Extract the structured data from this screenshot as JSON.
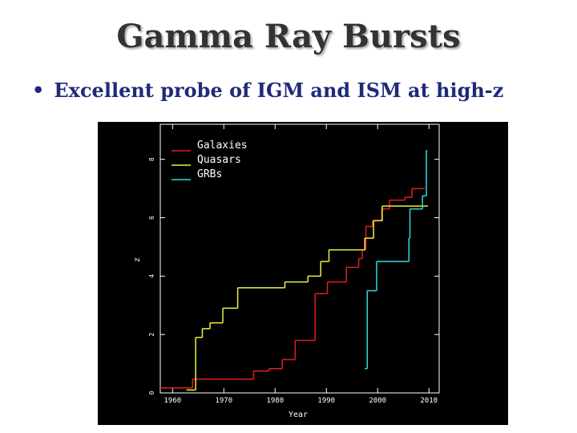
{
  "slide": {
    "title": "Gamma Ray Bursts",
    "bullet": "Excellent probe of IGM and ISM at high-z"
  },
  "chart_data": {
    "type": "step",
    "x_label": "Year",
    "y_label": "z",
    "xlim": [
      1957.6,
      2012
    ],
    "ylim": [
      0,
      9.2
    ],
    "xticks": [
      1960,
      1970,
      1980,
      1990,
      2000,
      2010
    ],
    "yticks": [
      0,
      2,
      4,
      6,
      8
    ],
    "legend": "upper left",
    "series": [
      {
        "name": "Galaxies",
        "color": "#e02020",
        "bins": [
          1957.6,
          1963.9,
          1975.8,
          1978.8,
          1981.4,
          1983.9,
          1987.8,
          1990.2,
          1993.9,
          1996.3,
          1997.0,
          1997.7,
          1999.0,
          2000.8,
          2002.3,
          2005.3,
          2006.7,
          2009.2
        ],
        "values": [
          0.17,
          0.47,
          0.75,
          0.83,
          1.14,
          1.8,
          3.4,
          3.8,
          4.3,
          4.6,
          4.9,
          5.7,
          5.9,
          6.3,
          6.6,
          6.7,
          7.0
        ]
      },
      {
        "name": "Quasars",
        "color": "#f0f040",
        "bins": [
          1962.7,
          1964.5,
          1965.8,
          1967.3,
          1969.8,
          1972.7,
          1981.9,
          1986.4,
          1988.9,
          1990.5,
          1997.5,
          1999.2,
          2000.9,
          2009.8
        ],
        "values": [
          0.1,
          1.9,
          2.2,
          2.4,
          2.9,
          3.6,
          3.8,
          4.0,
          4.5,
          4.9,
          5.3,
          5.9,
          6.4
        ]
      },
      {
        "name": "GRBs",
        "color": "#30d8e0",
        "bins": [
          1997.5,
          1997.97,
          1999.8,
          2006.1,
          2006.3,
          2008.75,
          2009.5,
          2009.7
        ],
        "values": [
          0.83,
          3.5,
          4.5,
          5.3,
          6.3,
          6.75,
          8.3
        ]
      }
    ]
  }
}
